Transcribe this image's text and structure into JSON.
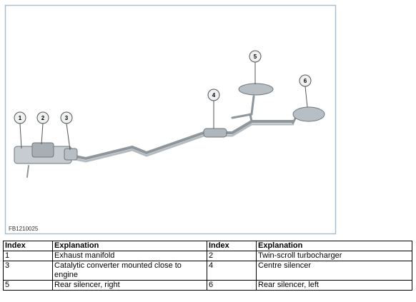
{
  "figure": {
    "callouts": [
      1,
      2,
      3,
      4,
      5,
      6
    ],
    "code": "FB1210025"
  },
  "table": {
    "header": [
      "Index",
      "Explanation",
      "Index",
      "Explanation"
    ],
    "rows": [
      [
        1,
        "Exhaust manifold",
        2,
        "Twin-scroll turbocharger"
      ],
      [
        3,
        "Catalytic converter mounted close to engine",
        4,
        "Centre silencer"
      ],
      [
        5,
        "Rear silencer, right",
        6,
        "Rear silencer, left"
      ]
    ]
  }
}
